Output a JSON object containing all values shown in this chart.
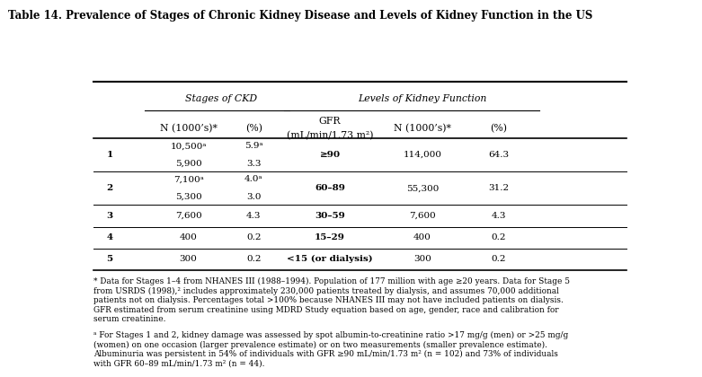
{
  "title": "Table 14. Prevalence of Stages of Chronic Kidney Disease and Levels of Kidney Function in the US",
  "col_headers": {
    "ckd_group": "Stages of CKD",
    "kidney_group": "Levels of Kidney Function",
    "ckd_n": "N (1000’s)*",
    "ckd_pct": "(%)",
    "gfr_line1": "GFR",
    "gfr_line2": "(mL/min/1.73 m²)",
    "kf_n": "N (1000’s)*",
    "kf_pct": "(%)"
  },
  "rows": [
    {
      "stage": "1",
      "ckd_n_line1": "10,500ᵃ",
      "ckd_n_line2": "5,900",
      "ckd_pct_line1": "5.9ᵃ",
      "ckd_pct_line2": "3.3",
      "gfr": "≥90",
      "kf_n": "114,000",
      "kf_pct": "64.3",
      "two_lines": true
    },
    {
      "stage": "2",
      "ckd_n_line1": "7,100ᵃ",
      "ckd_n_line2": "5,300",
      "ckd_pct_line1": "4.0ᵃ",
      "ckd_pct_line2": "3.0",
      "gfr": "60–89",
      "kf_n": "55,300",
      "kf_pct": "31.2",
      "two_lines": true
    },
    {
      "stage": "3",
      "ckd_n_line1": "7,600",
      "ckd_n_line2": "",
      "ckd_pct_line1": "4.3",
      "ckd_pct_line2": "",
      "gfr": "30–59",
      "kf_n": "7,600",
      "kf_pct": "4.3",
      "two_lines": false
    },
    {
      "stage": "4",
      "ckd_n_line1": "400",
      "ckd_n_line2": "",
      "ckd_pct_line1": "0.2",
      "ckd_pct_line2": "",
      "gfr": "15–29",
      "kf_n": "400",
      "kf_pct": "0.2",
      "two_lines": false
    },
    {
      "stage": "5",
      "ckd_n_line1": "300",
      "ckd_n_line2": "",
      "ckd_pct_line1": "0.2",
      "ckd_pct_line2": "",
      "gfr": "<15 (or dialysis)",
      "kf_n": "300",
      "kf_pct": "0.2",
      "two_lines": false
    }
  ],
  "footnote_star": "* Data for Stages 1–4 from NHANES III (1988–1994). Population of 177 million with age ≥20 years. Data for Stage 5\nfrom USRDS (1998),² includes approximately 230,000 patients treated by dialysis, and assumes 70,000 additional\npatients not on dialysis. Percentages total >100% because NHANES III may not have included patients on dialysis.\nGFR estimated from serum creatinine using MDRD Study equation based on age, gender, race and calibration for\nserum creatinine.",
  "footnote_a": "ᵃ For Stages 1 and 2, kidney damage was assessed by spot albumin-to-creatinine ratio >17 mg/g (men) or >25 mg/g\n(women) on one occasion (larger prevalence estimate) or on two measurements (smaller prevalence estimate).\nAlbuminuria was persistent in 54% of individuals with GFR ≥90 mL/min/1.73 m² (n = 102) and 73% of individuals\nwith GFR 60–89 mL/min/1.73 m² (n = 44).",
  "col_x": {
    "stage": 0.04,
    "ckd_n": 0.185,
    "ckd_pct": 0.305,
    "gfr": 0.445,
    "kf_n": 0.615,
    "kf_pct": 0.755
  },
  "fs_body": 7.5,
  "fs_header": 7.8,
  "fs_title": 8.5,
  "fs_footnote": 6.4
}
